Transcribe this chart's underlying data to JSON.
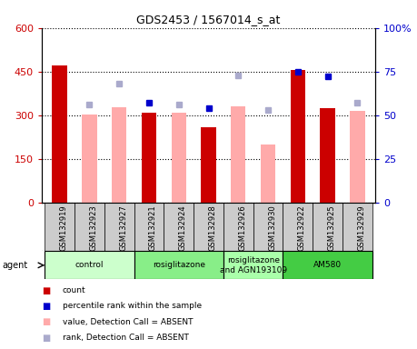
{
  "title": "GDS2453 / 1567014_s_at",
  "samples": [
    "GSM132919",
    "GSM132923",
    "GSM132927",
    "GSM132921",
    "GSM132924",
    "GSM132928",
    "GSM132926",
    "GSM132930",
    "GSM132922",
    "GSM132925",
    "GSM132929"
  ],
  "count_present": [
    470,
    null,
    null,
    308,
    null,
    258,
    null,
    null,
    455,
    325,
    null
  ],
  "count_absent": [
    null,
    303,
    328,
    null,
    310,
    null,
    330,
    200,
    null,
    null,
    315
  ],
  "rank_present_pct": [
    null,
    null,
    null,
    57,
    null,
    54,
    null,
    null,
    75,
    72,
    null
  ],
  "rank_absent_pct": [
    null,
    56,
    68,
    null,
    56,
    null,
    73,
    53,
    null,
    null,
    57
  ],
  "count_color": "#cc0000",
  "rank_present_color": "#0000cc",
  "count_absent_color": "#ffaaaa",
  "rank_absent_color": "#aaaacc",
  "ylim_left": [
    0,
    600
  ],
  "ylim_right": [
    0,
    100
  ],
  "yticks_left": [
    0,
    150,
    300,
    450,
    600
  ],
  "yticks_right": [
    0,
    25,
    50,
    75,
    100
  ],
  "ytick_labels_left": [
    "0",
    "150",
    "300",
    "450",
    "600"
  ],
  "ytick_labels_right": [
    "0",
    "25",
    "50",
    "75",
    "100%"
  ],
  "agent_groups": [
    {
      "label": "control",
      "start": 0,
      "end": 2,
      "color": "#ccffcc"
    },
    {
      "label": "rosiglitazone",
      "start": 3,
      "end": 5,
      "color": "#88ee88"
    },
    {
      "label": "rosiglitazone\nand AGN193109",
      "start": 6,
      "end": 7,
      "color": "#aaffaa"
    },
    {
      "label": "AM580",
      "start": 8,
      "end": 10,
      "color": "#44cc44"
    }
  ],
  "legend_items": [
    {
      "label": "count",
      "color": "#cc0000"
    },
    {
      "label": "percentile rank within the sample",
      "color": "#0000cc"
    },
    {
      "label": "value, Detection Call = ABSENT",
      "color": "#ffaaaa"
    },
    {
      "label": "rank, Detection Call = ABSENT",
      "color": "#aaaacc"
    }
  ],
  "agent_label": "agent",
  "background_color": "#ffffff",
  "plot_bg_color": "#ffffff",
  "xtick_bg_color": "#cccccc"
}
